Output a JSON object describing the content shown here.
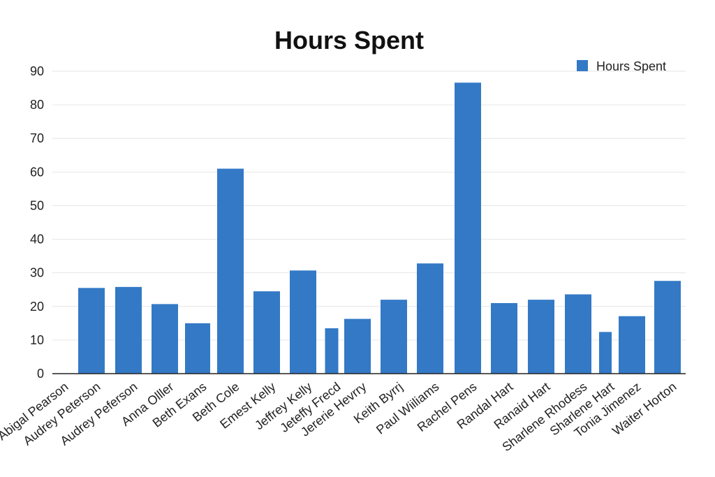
{
  "chart_data": {
    "type": "bar",
    "title": "Hours Spent",
    "xlabel": "",
    "ylabel": "",
    "ylim": [
      0,
      90
    ],
    "yticks": [
      0,
      10,
      20,
      30,
      40,
      50,
      60,
      70,
      80,
      90
    ],
    "grid": true,
    "legend_position": "top-right",
    "bar_color": "#3379c6",
    "categories": [
      "Abigal Pearson",
      "Audrey Peterson",
      "Audrey Peferson",
      "Anna Olller",
      "Beth Exans",
      "Beth Cole",
      "Emest Kelly",
      "Jeffrey Kelly",
      "Jeteffy Frecd",
      "Jererie Hevrry",
      "Keith Byrrj",
      "Paul Wiiliams",
      "Rachel Pens",
      "Randal Hart",
      "Ranaid Hart",
      "Sharlene Rhodess",
      "Sharlene Hart",
      "Tonia Jimenez",
      "Waiter Horton"
    ],
    "series": [
      {
        "name": "Hours Spent",
        "values": [
          null,
          25.5,
          25.8,
          20.7,
          15,
          61,
          24.5,
          30.7,
          13.5,
          16.3,
          22,
          32.8,
          86.6,
          21,
          22,
          23.6,
          12.4,
          17.1,
          27.6
        ]
      }
    ]
  }
}
